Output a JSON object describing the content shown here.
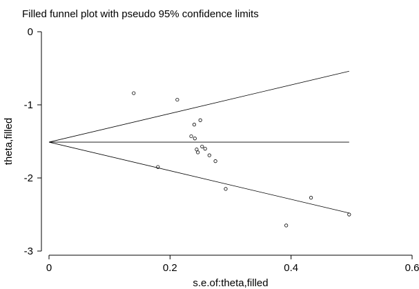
{
  "chart_data": {
    "type": "scatter",
    "title": "Filled funnel plot with pseudo 95% confidence limits",
    "xlabel": "s.e.of:theta,filled",
    "ylabel": "theta,filled",
    "xlim": [
      0,
      0.6
    ],
    "ylim": [
      -3,
      0
    ],
    "x_ticks": [
      0,
      0.2,
      0.4,
      0.6
    ],
    "x_tick_labels": [
      "0",
      "0.2",
      "0.4",
      "0.6"
    ],
    "y_ticks": [
      0,
      -1,
      -2,
      -3
    ],
    "y_tick_labels": [
      "0",
      "-1",
      "-2",
      "-3"
    ],
    "grid": false,
    "points": [
      {
        "x": 0.14,
        "y": -0.84
      },
      {
        "x": 0.212,
        "y": -0.93
      },
      {
        "x": 0.25,
        "y": -1.21
      },
      {
        "x": 0.24,
        "y": -1.27
      },
      {
        "x": 0.235,
        "y": -1.43
      },
      {
        "x": 0.241,
        "y": -1.46
      },
      {
        "x": 0.253,
        "y": -1.57
      },
      {
        "x": 0.258,
        "y": -1.6
      },
      {
        "x": 0.244,
        "y": -1.61
      },
      {
        "x": 0.246,
        "y": -1.65
      },
      {
        "x": 0.265,
        "y": -1.69
      },
      {
        "x": 0.275,
        "y": -1.77
      },
      {
        "x": 0.18,
        "y": -1.85
      },
      {
        "x": 0.292,
        "y": -2.15
      },
      {
        "x": 0.433,
        "y": -2.27
      },
      {
        "x": 0.392,
        "y": -2.65
      },
      {
        "x": 0.496,
        "y": -2.5
      }
    ],
    "center_line": {
      "y": -1.51,
      "x_start": 0,
      "x_end": 0.496
    },
    "confidence_limits": {
      "apex": {
        "x": 0,
        "y": -1.51
      },
      "upper_end": {
        "x": 0.496,
        "y": -0.54
      },
      "lower_end": {
        "x": 0.496,
        "y": -2.48
      }
    }
  }
}
